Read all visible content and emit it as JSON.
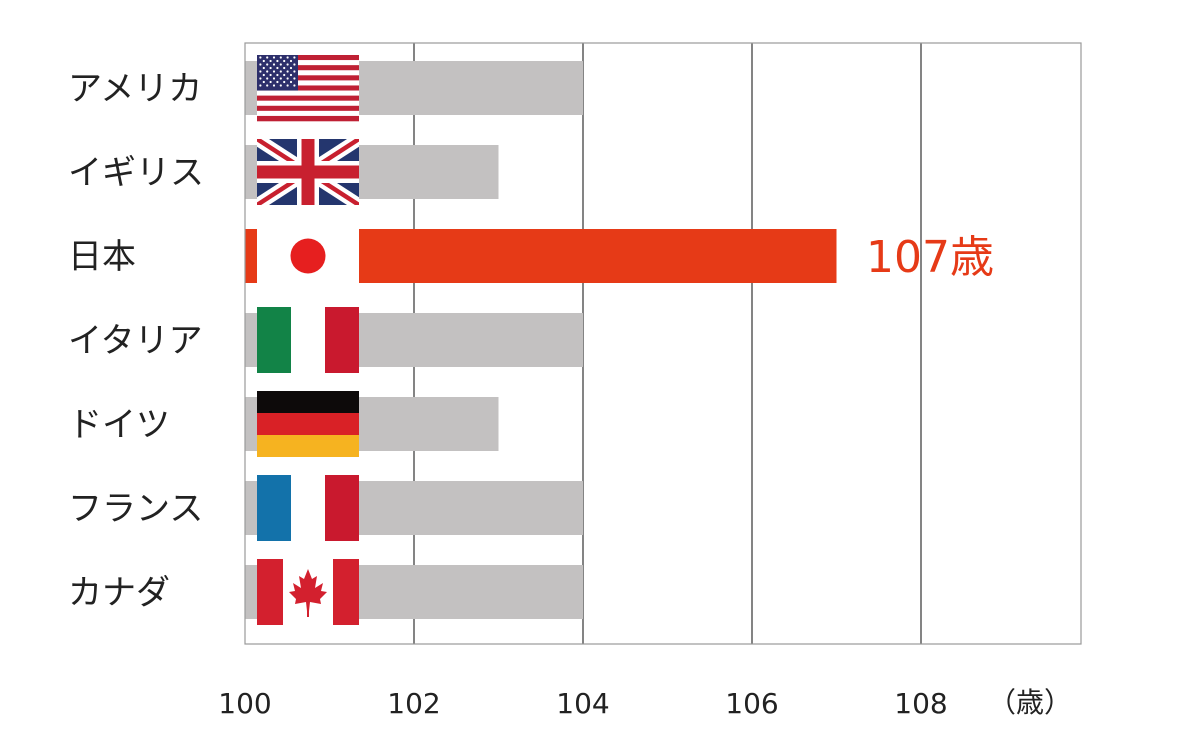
{
  "chart_data": {
    "type": "bar",
    "orientation": "horizontal",
    "categories": [
      "アメリカ",
      "イギリス",
      "日本",
      "イタリア",
      "ドイツ",
      "フランス",
      "カナダ"
    ],
    "values": [
      104,
      103,
      107,
      104,
      103,
      104,
      104
    ],
    "xlim": [
      100,
      110
    ],
    "xticks": [
      100,
      102,
      104,
      106,
      108
    ],
    "xunit_label": "（歳）",
    "highlight": {
      "category": "日本",
      "label": "107歳",
      "color": "#e63a17"
    },
    "bar_color": "#c3c1c1",
    "grid": true,
    "flags": [
      "us-flag-icon",
      "uk-flag-icon",
      "japan-flag-icon",
      "italy-flag-icon",
      "germany-flag-icon",
      "france-flag-icon",
      "canada-flag-icon"
    ]
  }
}
